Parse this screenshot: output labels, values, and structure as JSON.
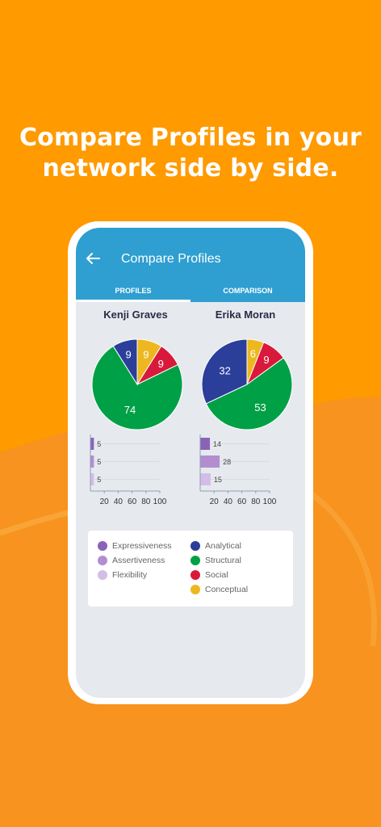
{
  "headline": {
    "line1": "Compare Profiles in your",
    "line2": "network side by side."
  },
  "app": {
    "title": "Compare Profiles",
    "tabs": [
      {
        "label": "PROFILES",
        "active": true
      },
      {
        "label": "COMPARISON",
        "active": false
      }
    ]
  },
  "colors": {
    "background": "#FF9A00",
    "appbar": "#2E9FD0",
    "Expressiveness": "#8A63B8",
    "Assertiveness": "#B28ED0",
    "Flexibility": "#D2BDE6",
    "Analytical": "#2A3E9A",
    "Structural": "#00A046",
    "Social": "#D9193B",
    "Conceptual": "#EDB71F"
  },
  "profiles": [
    {
      "name": "Kenji Graves"
    },
    {
      "name": "Erika Moran"
    }
  ],
  "chart_data": [
    {
      "type": "pie",
      "title": "Kenji Graves",
      "slices": [
        {
          "label": "Conceptual",
          "value": 9
        },
        {
          "label": "Social",
          "value": 9
        },
        {
          "label": "Structural",
          "value": 74
        },
        {
          "label": "Analytical",
          "value": 9
        }
      ]
    },
    {
      "type": "pie",
      "title": "Erika Moran",
      "slices": [
        {
          "label": "Conceptual",
          "value": 6
        },
        {
          "label": "Social",
          "value": 9
        },
        {
          "label": "Structural",
          "value": 53
        },
        {
          "label": "Analytical",
          "value": 32
        }
      ]
    },
    {
      "type": "bar",
      "orientation": "horizontal",
      "categories": [
        "Expressiveness",
        "Assertiveness",
        "Flexibility"
      ],
      "values": [
        5,
        5,
        5
      ],
      "xlim": [
        0,
        100
      ],
      "xticks": [
        20,
        40,
        60,
        80,
        100
      ]
    },
    {
      "type": "bar",
      "orientation": "horizontal",
      "categories": [
        "Expressiveness",
        "Assertiveness",
        "Flexibility"
      ],
      "values": [
        14,
        28,
        15
      ],
      "xlim": [
        0,
        100
      ],
      "xticks": [
        20,
        40,
        60,
        80,
        100
      ]
    }
  ],
  "legend": {
    "col1": [
      "Expressiveness",
      "Assertiveness",
      "Flexibility"
    ],
    "col2": [
      "Analytical",
      "Structural",
      "Social",
      "Conceptual"
    ]
  }
}
